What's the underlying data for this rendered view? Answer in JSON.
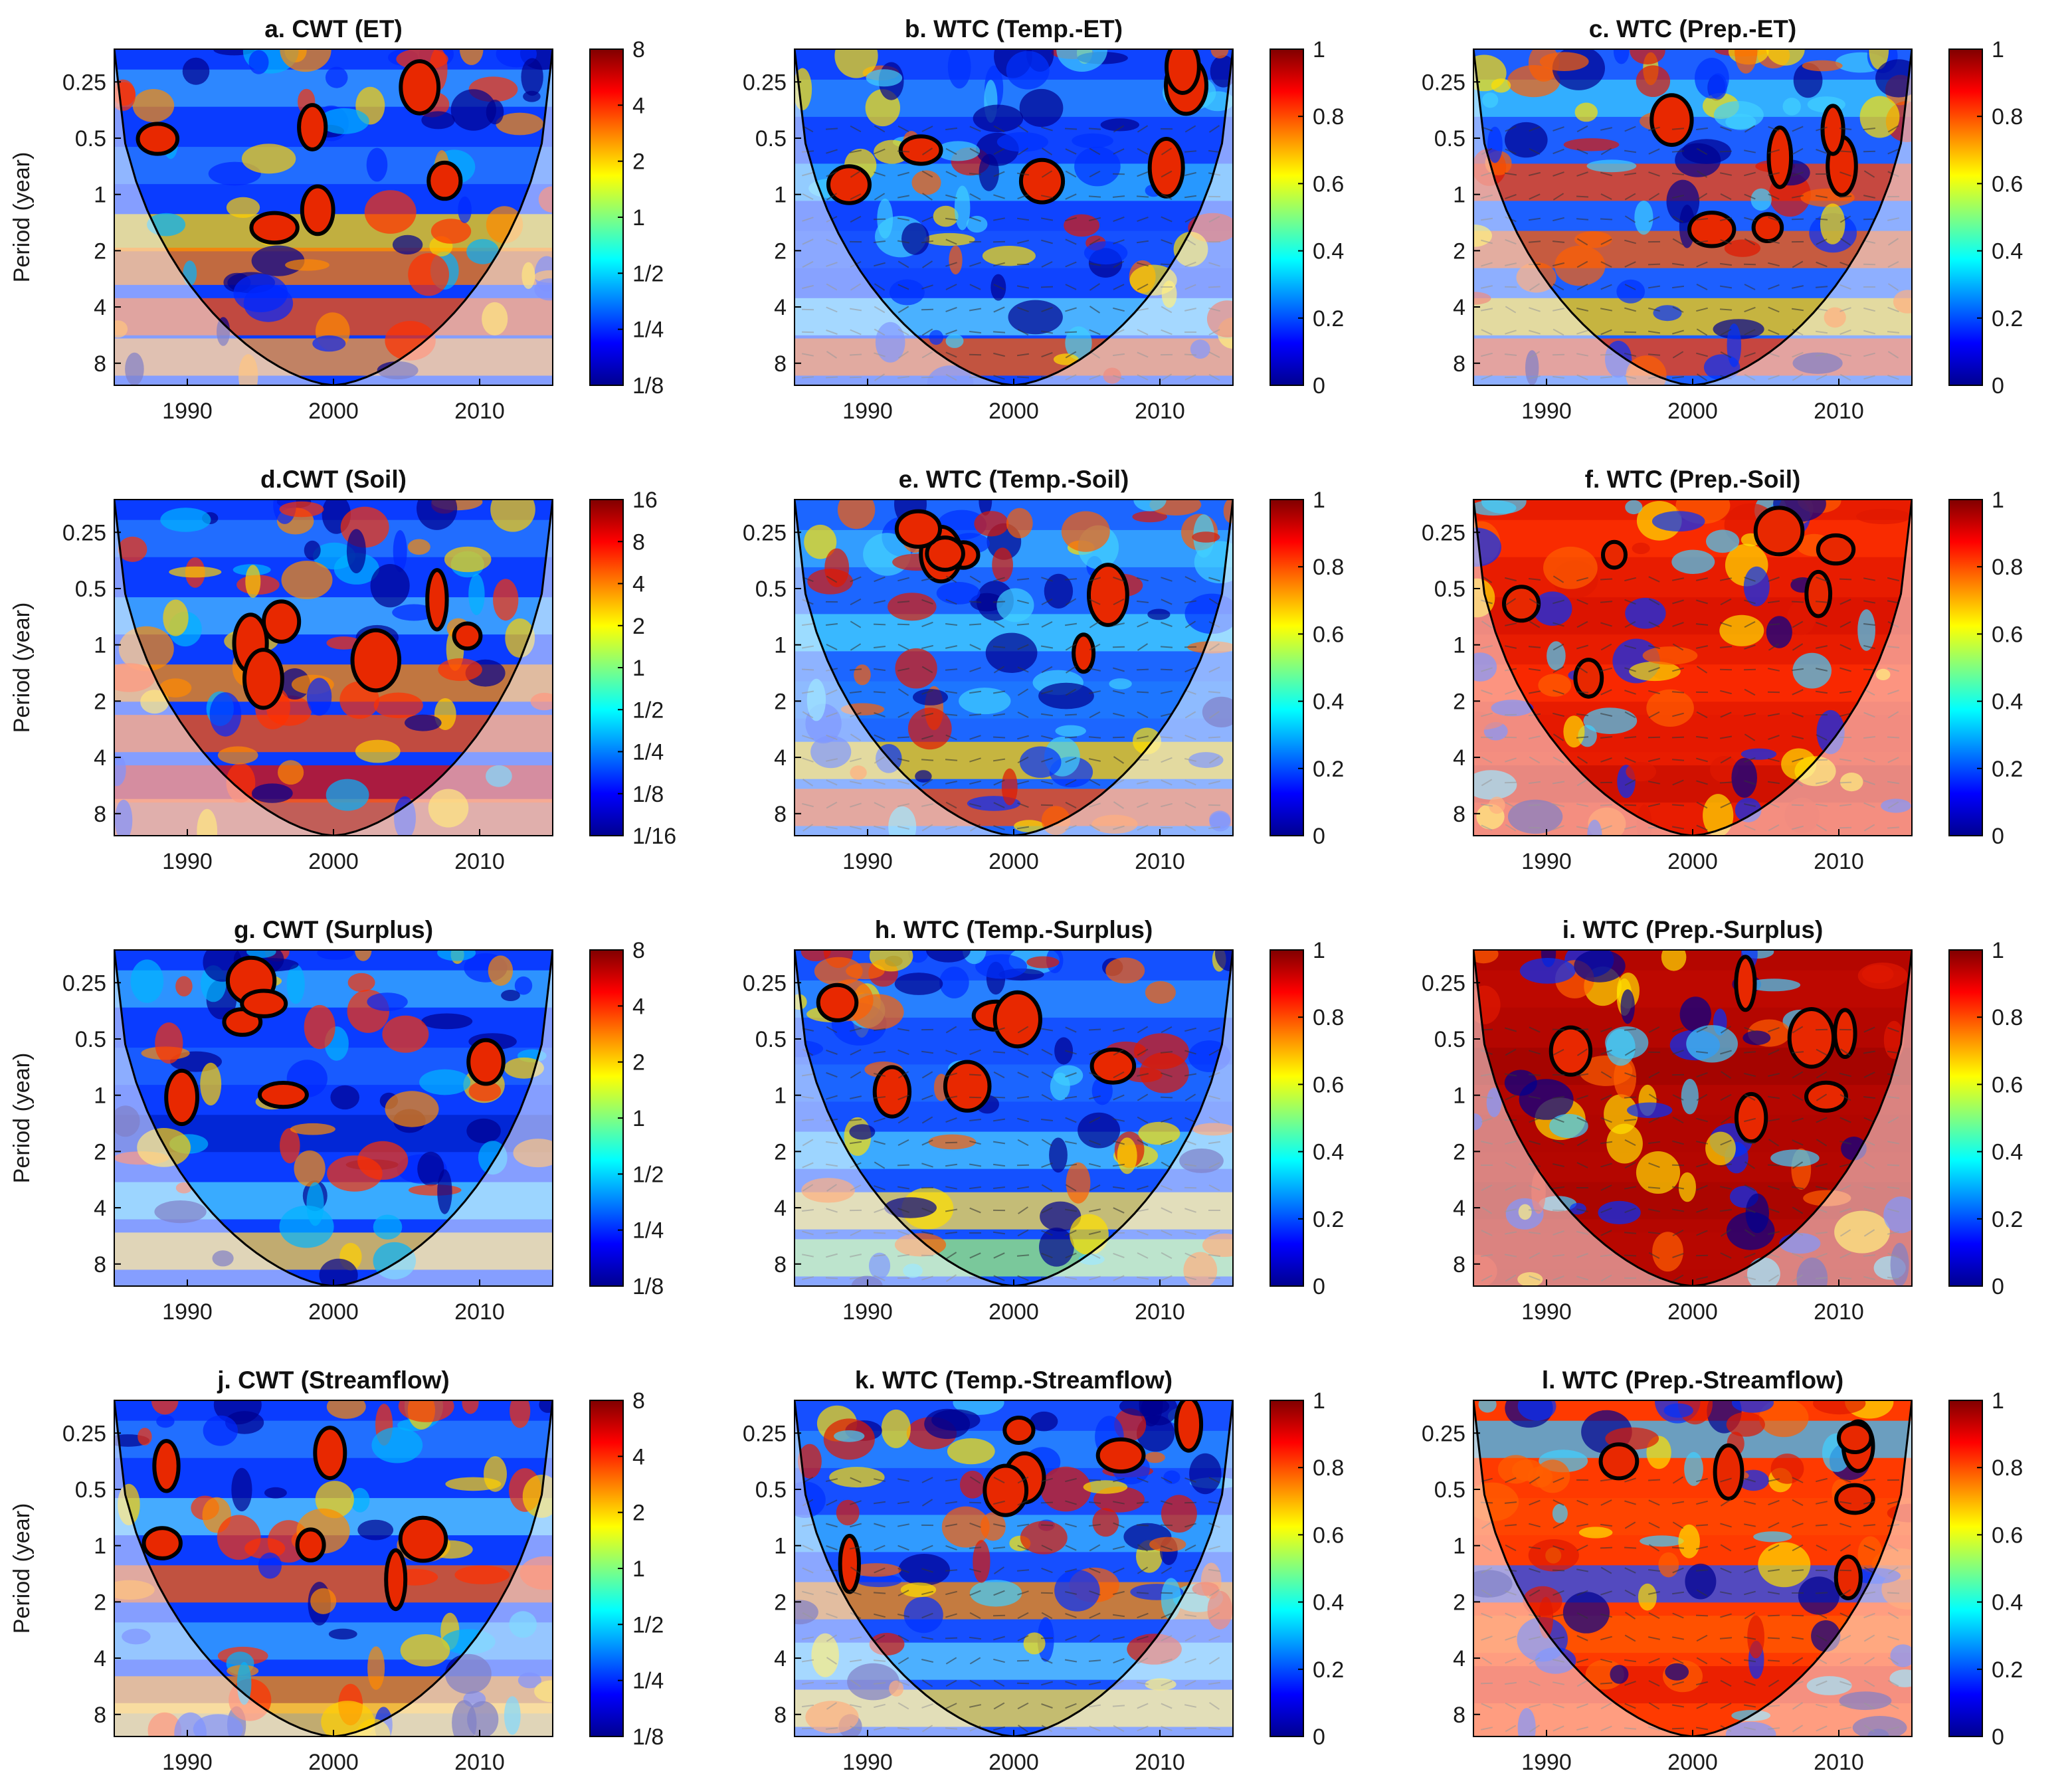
{
  "figure": {
    "y_axis_label": "Period (year)"
  },
  "colormap": {
    "name": "jet",
    "stops": [
      "#00008f",
      "#0000ff",
      "#0080ff",
      "#00ffff",
      "#80ff80",
      "#ffff00",
      "#ff8000",
      "#ff0000",
      "#800000"
    ]
  },
  "chart_data": [
    {
      "id": "a",
      "type": "heatmap",
      "title": "a. CWT (ET)",
      "kind": "CWT",
      "xlabel": "",
      "ylabel": "Period (year)",
      "xlim": [
        1985,
        2015
      ],
      "x_ticks": [
        "1990",
        "2000",
        "2010"
      ],
      "y_ticks": [
        "0.25",
        "0.5",
        "1",
        "2",
        "4",
        "8"
      ],
      "colorbar_ticks": [
        "1/8",
        "1/4",
        "1/2",
        "1",
        "2",
        "4",
        "8"
      ],
      "colorbar_range": "1/8 to 8 (log2 power)"
    },
    {
      "id": "b",
      "type": "heatmap",
      "title": "b. WTC (Temp.-ET)",
      "kind": "WTC",
      "xlabel": "",
      "ylabel": "",
      "xlim": [
        1985,
        2015
      ],
      "x_ticks": [
        "1990",
        "2000",
        "2010"
      ],
      "y_ticks": [
        "0.25",
        "0.5",
        "1",
        "2",
        "4",
        "8"
      ],
      "colorbar_ticks": [
        "0",
        "0.2",
        "0.4",
        "0.6",
        "0.8",
        "1"
      ],
      "colorbar_range": [
        0,
        1
      ]
    },
    {
      "id": "c",
      "type": "heatmap",
      "title": "c. WTC (Prep.-ET)",
      "kind": "WTC",
      "xlabel": "",
      "ylabel": "",
      "xlim": [
        1985,
        2015
      ],
      "x_ticks": [
        "1990",
        "2000",
        "2010"
      ],
      "y_ticks": [
        "0.25",
        "0.5",
        "1",
        "2",
        "4",
        "8"
      ],
      "colorbar_ticks": [
        "0",
        "0.2",
        "0.4",
        "0.6",
        "0.8",
        "1"
      ],
      "colorbar_range": [
        0,
        1
      ]
    },
    {
      "id": "d",
      "type": "heatmap",
      "title": "d.CWT (Soil)",
      "kind": "CWT",
      "xlabel": "",
      "ylabel": "Period (year)",
      "xlim": [
        1985,
        2015
      ],
      "x_ticks": [
        "1990",
        "2000",
        "2010"
      ],
      "y_ticks": [
        "0.25",
        "0.5",
        "1",
        "2",
        "4",
        "8"
      ],
      "colorbar_ticks": [
        "1/16",
        "1/8",
        "1/4",
        "1/2",
        "1",
        "2",
        "4",
        "8",
        "16"
      ],
      "colorbar_range": "1/16 to 16 (log2 power)"
    },
    {
      "id": "e",
      "type": "heatmap",
      "title": "e. WTC (Temp.-Soil)",
      "kind": "WTC",
      "xlabel": "",
      "ylabel": "",
      "xlim": [
        1985,
        2015
      ],
      "x_ticks": [
        "1990",
        "2000",
        "2010"
      ],
      "y_ticks": [
        "0.25",
        "0.5",
        "1",
        "2",
        "4",
        "8"
      ],
      "colorbar_ticks": [
        "0",
        "0.2",
        "0.4",
        "0.6",
        "0.8",
        "1"
      ],
      "colorbar_range": [
        0,
        1
      ]
    },
    {
      "id": "f",
      "type": "heatmap",
      "title": "f. WTC (Prep.-Soil)",
      "kind": "WTC",
      "xlabel": "",
      "ylabel": "",
      "xlim": [
        1985,
        2015
      ],
      "x_ticks": [
        "1990",
        "2000",
        "2010"
      ],
      "y_ticks": [
        "0.25",
        "0.5",
        "1",
        "2",
        "4",
        "8"
      ],
      "colorbar_ticks": [
        "0",
        "0.2",
        "0.4",
        "0.6",
        "0.8",
        "1"
      ],
      "colorbar_range": [
        0,
        1
      ]
    },
    {
      "id": "g",
      "type": "heatmap",
      "title": "g. CWT (Surplus)",
      "kind": "CWT",
      "xlabel": "",
      "ylabel": "Period (year)",
      "xlim": [
        1985,
        2015
      ],
      "x_ticks": [
        "1990",
        "2000",
        "2010"
      ],
      "y_ticks": [
        "0.25",
        "0.5",
        "1",
        "2",
        "4",
        "8"
      ],
      "colorbar_ticks": [
        "1/8",
        "1/4",
        "1/2",
        "1",
        "2",
        "4",
        "8"
      ],
      "colorbar_range": "1/8 to 8 (log2 power)"
    },
    {
      "id": "h",
      "type": "heatmap",
      "title": "h. WTC (Temp.-Surplus)",
      "kind": "WTC",
      "xlabel": "",
      "ylabel": "",
      "xlim": [
        1985,
        2015
      ],
      "x_ticks": [
        "1990",
        "2000",
        "2010"
      ],
      "y_ticks": [
        "0.25",
        "0.5",
        "1",
        "2",
        "4",
        "8"
      ],
      "colorbar_ticks": [
        "0",
        "0.2",
        "0.4",
        "0.6",
        "0.8",
        "1"
      ],
      "colorbar_range": [
        0,
        1
      ]
    },
    {
      "id": "i",
      "type": "heatmap",
      "title": "i. WTC (Prep.-Surplus)",
      "kind": "WTC",
      "xlabel": "",
      "ylabel": "",
      "xlim": [
        1985,
        2015
      ],
      "x_ticks": [
        "1990",
        "2000",
        "2010"
      ],
      "y_ticks": [
        "0.25",
        "0.5",
        "1",
        "2",
        "4",
        "8"
      ],
      "colorbar_ticks": [
        "0",
        "0.2",
        "0.4",
        "0.6",
        "0.8",
        "1"
      ],
      "colorbar_range": [
        0,
        1
      ]
    },
    {
      "id": "j",
      "type": "heatmap",
      "title": "j. CWT (Streamflow)",
      "kind": "CWT",
      "xlabel": "",
      "ylabel": "Period (year)",
      "xlim": [
        1985,
        2015
      ],
      "x_ticks": [
        "1990",
        "2000",
        "2010"
      ],
      "y_ticks": [
        "0.25",
        "0.5",
        "1",
        "2",
        "4",
        "8"
      ],
      "colorbar_ticks": [
        "1/8",
        "1/4",
        "1/2",
        "1",
        "2",
        "4",
        "8"
      ],
      "colorbar_range": "1/8 to 8 (log2 power)"
    },
    {
      "id": "k",
      "type": "heatmap",
      "title": "k. WTC (Temp.-Streamflow)",
      "kind": "WTC",
      "xlabel": "",
      "ylabel": "",
      "xlim": [
        1985,
        2015
      ],
      "x_ticks": [
        "1990",
        "2000",
        "2010"
      ],
      "y_ticks": [
        "0.25",
        "0.5",
        "1",
        "2",
        "4",
        "8"
      ],
      "colorbar_ticks": [
        "0",
        "0.2",
        "0.4",
        "0.6",
        "0.8",
        "1"
      ],
      "colorbar_range": [
        0,
        1
      ]
    },
    {
      "id": "l",
      "type": "heatmap",
      "title": "l. WTC (Prep.-Streamflow)",
      "kind": "WTC",
      "xlabel": "",
      "ylabel": "",
      "xlim": [
        1985,
        2015
      ],
      "x_ticks": [
        "1990",
        "2000",
        "2010"
      ],
      "y_ticks": [
        "0.25",
        "0.5",
        "1",
        "2",
        "4",
        "8"
      ],
      "colorbar_ticks": [
        "0",
        "0.2",
        "0.4",
        "0.6",
        "0.8",
        "1"
      ],
      "colorbar_range": [
        0,
        1
      ]
    }
  ]
}
